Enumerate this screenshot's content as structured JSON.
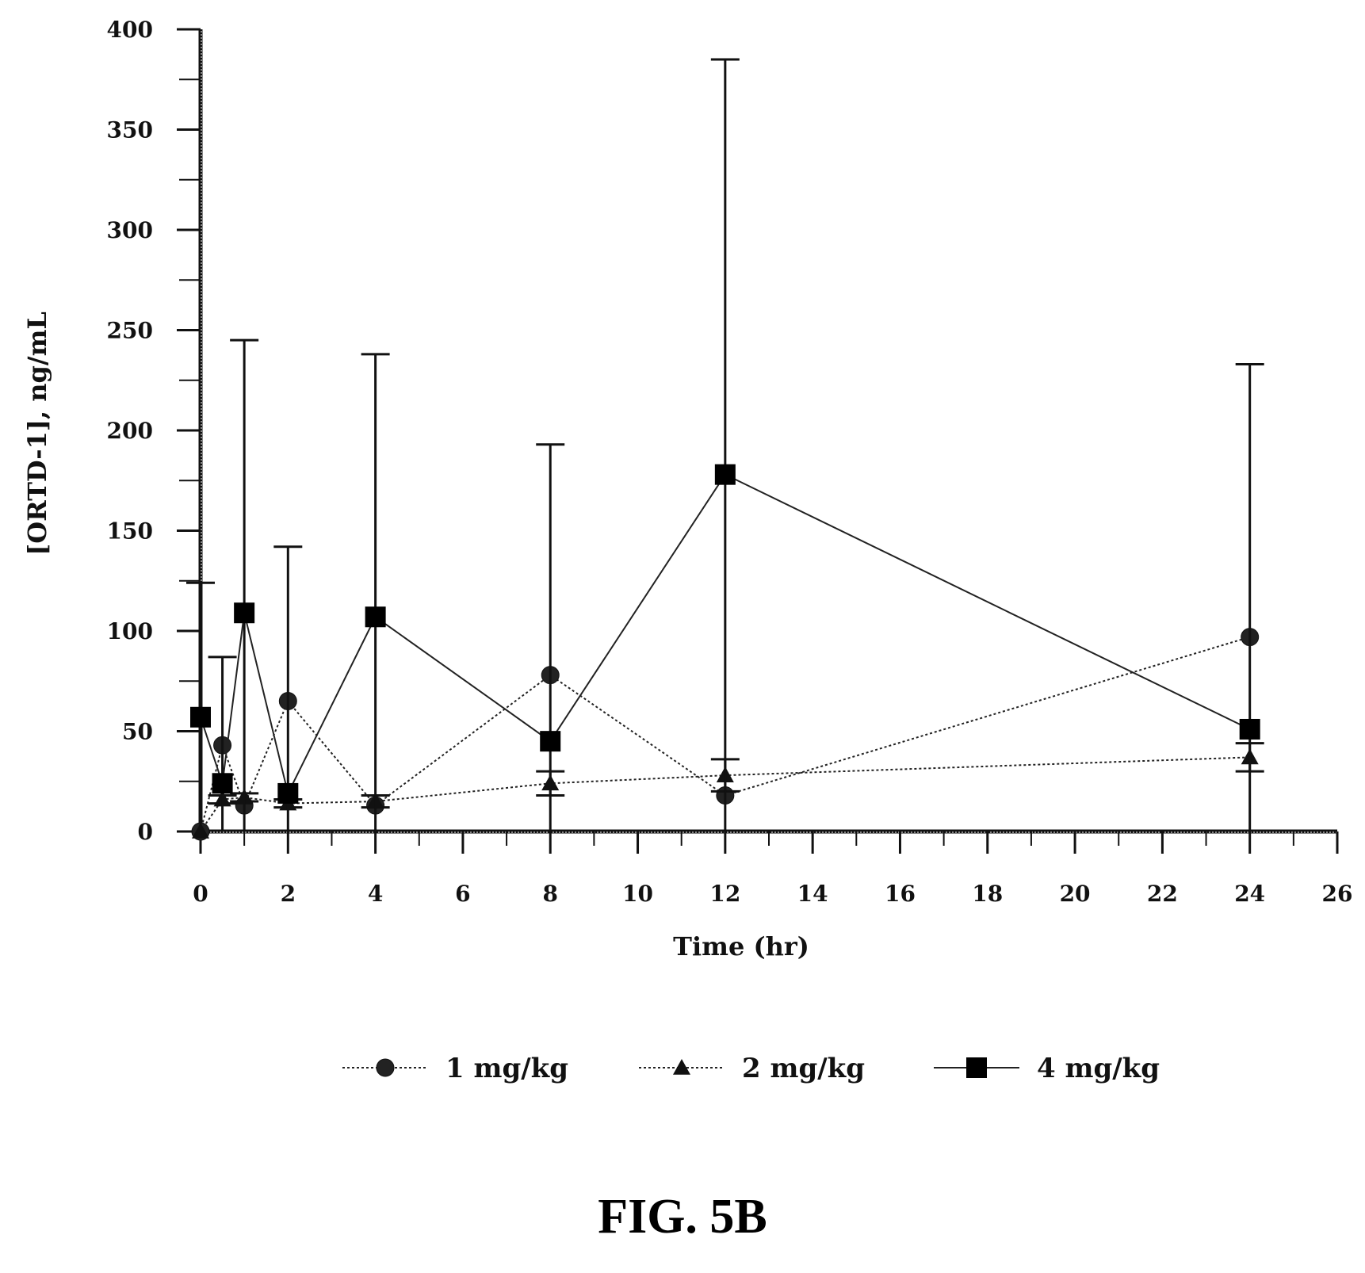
{
  "chart_data": {
    "type": "line",
    "xlabel": "Time (hr)",
    "ylabel": "[ORTD-1], ng/mL",
    "xlim": [
      0,
      26
    ],
    "ylim": [
      0,
      400
    ],
    "x_ticks": [
      "0",
      "2",
      "4",
      "6",
      "8",
      "10",
      "12",
      "14",
      "16",
      "18",
      "20",
      "22",
      "24",
      "26"
    ],
    "y_ticks": [
      "0",
      "50",
      "100",
      "150",
      "200",
      "250",
      "300",
      "350",
      "400"
    ],
    "legend_position": "bottom",
    "series": [
      {
        "name": "1 mg/kg",
        "marker": "circle",
        "line": "dotted",
        "x": [
          0,
          0.5,
          1,
          2,
          4,
          8,
          12,
          24
        ],
        "y": [
          0,
          43,
          13,
          65,
          13,
          78,
          18,
          97
        ],
        "err": [
          0,
          0,
          0,
          0,
          0,
          0,
          0,
          0
        ]
      },
      {
        "name": "2 mg/kg",
        "marker": "triangle",
        "line": "dotted",
        "x": [
          0,
          0.5,
          1,
          2,
          4,
          8,
          12,
          24
        ],
        "y": [
          0,
          16,
          17,
          14,
          15,
          24,
          28,
          37
        ],
        "err": [
          0,
          2,
          2,
          2,
          3,
          6,
          8,
          7
        ]
      },
      {
        "name": "4 mg/kg",
        "marker": "square",
        "line": "solid",
        "x": [
          0,
          0.5,
          1,
          2,
          4,
          8,
          12,
          24
        ],
        "y": [
          57,
          24,
          109,
          19,
          107,
          45,
          178,
          51
        ],
        "err": [
          67,
          63,
          136,
          123,
          131,
          148,
          207,
          182
        ]
      }
    ]
  },
  "figure_label": "FIG. 5B"
}
